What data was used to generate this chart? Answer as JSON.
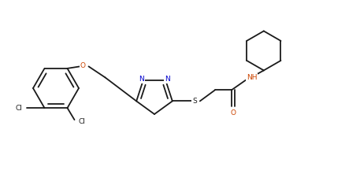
{
  "background_color": "#ffffff",
  "line_color": "#1a1a1a",
  "n_color": "#0000cc",
  "o_color": "#cc4400",
  "s_color": "#1a1a1a",
  "cl_color": "#1a1a1a",
  "nh_color": "#cc4400",
  "line_width": 1.3,
  "figsize": [
    4.57,
    2.21
  ],
  "dpi": 100,
  "xlim": [
    0,
    9.14
  ],
  "ylim": [
    0,
    4.42
  ]
}
